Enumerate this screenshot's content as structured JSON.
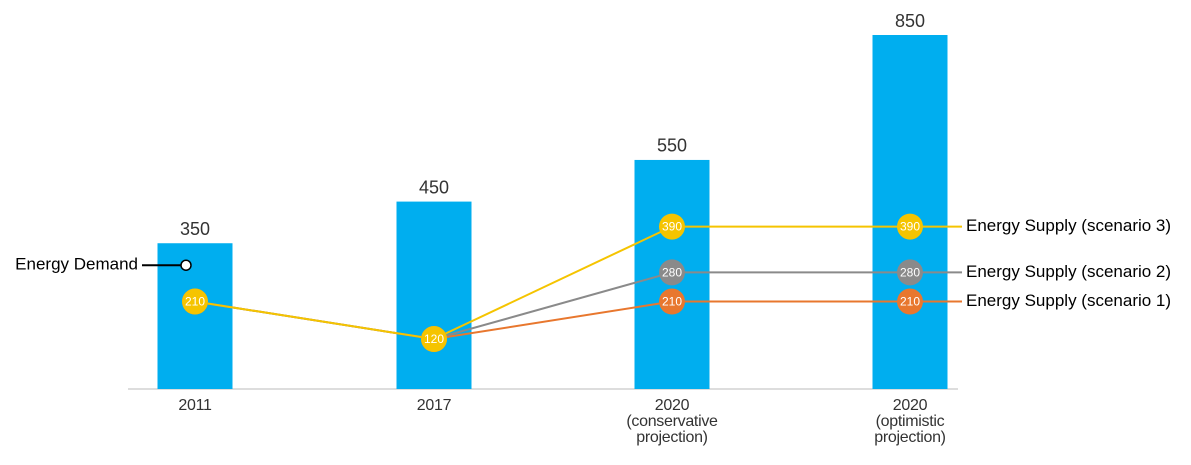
{
  "chart_data": {
    "type": "bar",
    "categories": [
      "2011",
      "2017",
      "2020\n(conservative\nprojection)",
      "2020\n(optimistic\nprojection)"
    ],
    "ylim": [
      0,
      850
    ],
    "series": [
      {
        "name": "Energy Demand",
        "type": "bar",
        "color": "#00aeef",
        "values": [
          350,
          450,
          550,
          850
        ]
      },
      {
        "name": "Energy Supply (scenario 1)",
        "type": "line",
        "color": "#e8772e",
        "values": [
          210,
          120,
          210,
          210
        ]
      },
      {
        "name": "Energy Supply (scenario 2)",
        "type": "line",
        "color": "#8a8a8a",
        "values": [
          210,
          120,
          280,
          280
        ]
      },
      {
        "name": "Energy Supply (scenario 3)",
        "type": "line",
        "color": "#f5c400",
        "values": [
          210,
          120,
          390,
          390
        ]
      }
    ]
  }
}
